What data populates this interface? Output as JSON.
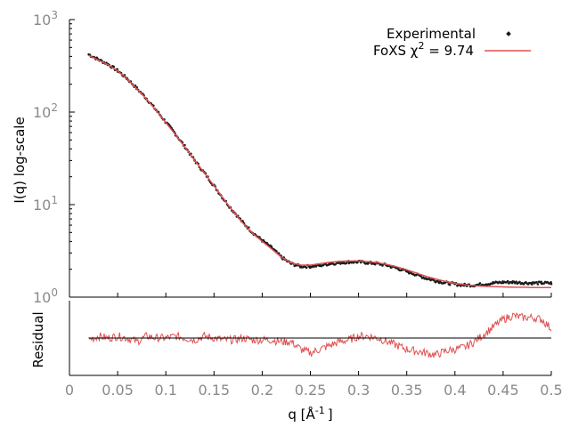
{
  "chart_data": {
    "type": "scatter",
    "colors": {
      "experimental": "#1a1a1a",
      "fit": "#e05050",
      "axis": "#000000",
      "tick_label": "#8a8a8a",
      "baseline": "#000000"
    },
    "top_panel": {
      "ylabel": "I(q) log-scale",
      "yscale": "log",
      "ylim": [
        1,
        1000
      ],
      "y_ticks": [
        {
          "base": "10",
          "exp": "0"
        },
        {
          "base": "10",
          "exp": "1"
        },
        {
          "base": "10",
          "exp": "2"
        },
        {
          "base": "10",
          "exp": "3"
        }
      ],
      "legend": {
        "position": "top-right",
        "experimental_label": "Experimental",
        "fit_label_prefix": "FoXS χ",
        "fit_label_sup": "2",
        "fit_label_suffix": " = 9.74"
      },
      "series": [
        {
          "name": "Experimental",
          "style": "points",
          "x": [
            0.02,
            0.03,
            0.04,
            0.05,
            0.06,
            0.07,
            0.08,
            0.09,
            0.1,
            0.11,
            0.12,
            0.13,
            0.14,
            0.15,
            0.16,
            0.17,
            0.18,
            0.19,
            0.2,
            0.21,
            0.22,
            0.23,
            0.24,
            0.25,
            0.26,
            0.27,
            0.28,
            0.29,
            0.3,
            0.31,
            0.32,
            0.33,
            0.34,
            0.35,
            0.36,
            0.37,
            0.38,
            0.39,
            0.4,
            0.41,
            0.42,
            0.43,
            0.44,
            0.45,
            0.46,
            0.47,
            0.48,
            0.49,
            0.5
          ],
          "y": [
            420,
            370,
            330,
            280,
            230,
            180,
            140,
            105,
            78,
            58,
            42,
            30,
            22,
            16,
            11.5,
            8.5,
            6.4,
            5.0,
            4.1,
            3.4,
            2.7,
            2.3,
            2.15,
            2.15,
            2.2,
            2.3,
            2.35,
            2.4,
            2.4,
            2.35,
            2.3,
            2.2,
            2.05,
            1.9,
            1.75,
            1.6,
            1.5,
            1.43,
            1.38,
            1.35,
            1.35,
            1.38,
            1.42,
            1.45,
            1.45,
            1.43,
            1.42,
            1.42,
            1.42
          ]
        },
        {
          "name": "FoXS χ2 = 9.74",
          "style": "line",
          "x": [
            0.02,
            0.03,
            0.04,
            0.05,
            0.06,
            0.07,
            0.08,
            0.09,
            0.1,
            0.11,
            0.12,
            0.13,
            0.14,
            0.15,
            0.16,
            0.17,
            0.18,
            0.19,
            0.2,
            0.21,
            0.22,
            0.23,
            0.24,
            0.25,
            0.26,
            0.27,
            0.28,
            0.29,
            0.3,
            0.31,
            0.32,
            0.33,
            0.34,
            0.35,
            0.36,
            0.37,
            0.38,
            0.39,
            0.4,
            0.41,
            0.42,
            0.43,
            0.44,
            0.45,
            0.46,
            0.47,
            0.48,
            0.49,
            0.5
          ],
          "y": [
            410,
            365,
            325,
            278,
            228,
            178,
            138,
            104,
            77,
            57,
            41.5,
            30,
            22,
            16,
            11.5,
            8.4,
            6.3,
            4.9,
            4.0,
            3.3,
            2.7,
            2.35,
            2.22,
            2.22,
            2.3,
            2.38,
            2.43,
            2.46,
            2.46,
            2.42,
            2.35,
            2.25,
            2.12,
            1.97,
            1.82,
            1.68,
            1.57,
            1.48,
            1.41,
            1.36,
            1.33,
            1.31,
            1.3,
            1.29,
            1.28,
            1.28,
            1.27,
            1.27,
            1.27
          ]
        }
      ]
    },
    "bottom_panel": {
      "ylabel": "Residual",
      "ylim": [
        -1,
        1
      ],
      "baseline_y": 0,
      "series": [
        {
          "name": "Residual",
          "style": "line",
          "x": [
            0.02,
            0.03,
            0.04,
            0.05,
            0.06,
            0.07,
            0.08,
            0.09,
            0.1,
            0.11,
            0.12,
            0.13,
            0.14,
            0.15,
            0.16,
            0.17,
            0.18,
            0.19,
            0.2,
            0.21,
            0.22,
            0.23,
            0.24,
            0.25,
            0.26,
            0.27,
            0.28,
            0.29,
            0.3,
            0.31,
            0.32,
            0.33,
            0.34,
            0.35,
            0.36,
            0.37,
            0.38,
            0.39,
            0.4,
            0.41,
            0.42,
            0.43,
            0.44,
            0.45,
            0.46,
            0.47,
            0.48,
            0.49,
            0.5
          ],
          "y": [
            -0.05,
            0.05,
            0.0,
            0.05,
            0.0,
            -0.1,
            0.05,
            0.0,
            0.0,
            0.05,
            0.0,
            -0.05,
            0.05,
            0.0,
            -0.05,
            -0.05,
            0.0,
            -0.05,
            -0.05,
            -0.05,
            -0.1,
            -0.1,
            -0.3,
            -0.4,
            -0.3,
            -0.2,
            -0.1,
            -0.05,
            0.05,
            0.05,
            0.0,
            -0.1,
            -0.2,
            -0.3,
            -0.35,
            -0.4,
            -0.45,
            -0.35,
            -0.3,
            -0.25,
            -0.1,
            0.1,
            0.3,
            0.5,
            0.6,
            0.55,
            0.55,
            0.5,
            0.25
          ]
        }
      ]
    },
    "x_axis": {
      "label_main": "q [Å",
      "label_sup": "-1",
      "label_end": "]",
      "xlim": [
        0,
        0.5
      ],
      "ticks": [
        "0",
        "0.05",
        "0.1",
        "0.15",
        "0.2",
        "0.25",
        "0.3",
        "0.35",
        "0.4",
        "0.45",
        "0.5"
      ]
    }
  }
}
